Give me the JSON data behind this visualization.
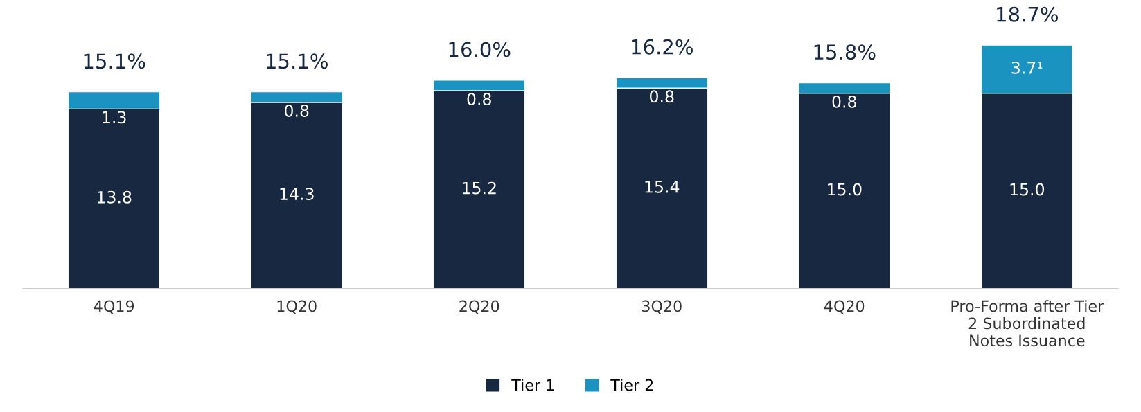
{
  "chart_data": {
    "type": "bar",
    "stacked": true,
    "categories": [
      "4Q19",
      "1Q20",
      "2Q20",
      "3Q20",
      "4Q20",
      "Pro-Forma after Tier\n2 Subordinated\nNotes Issuance"
    ],
    "series": [
      {
        "name": "Tier 1",
        "color": "#172840",
        "values": [
          13.8,
          14.3,
          15.2,
          15.4,
          15.0,
          15.0
        ],
        "value_labels": [
          "13.8",
          "14.3",
          "15.2",
          "15.4",
          "15.0",
          "15.0"
        ]
      },
      {
        "name": "Tier 2",
        "color": "#1a93c0",
        "values": [
          1.3,
          0.8,
          0.8,
          0.8,
          0.8,
          3.7
        ],
        "value_labels": [
          "1.3",
          "0.8",
          "0.8",
          "0.8",
          "0.8",
          "3.7¹"
        ]
      }
    ],
    "totals": [
      "15.1%",
      "15.1%",
      "16.0%",
      "16.2%",
      "15.8%",
      "18.7%"
    ],
    "data_labels": true,
    "tick_labels": "x",
    "grid": false,
    "legend": "bottom"
  }
}
